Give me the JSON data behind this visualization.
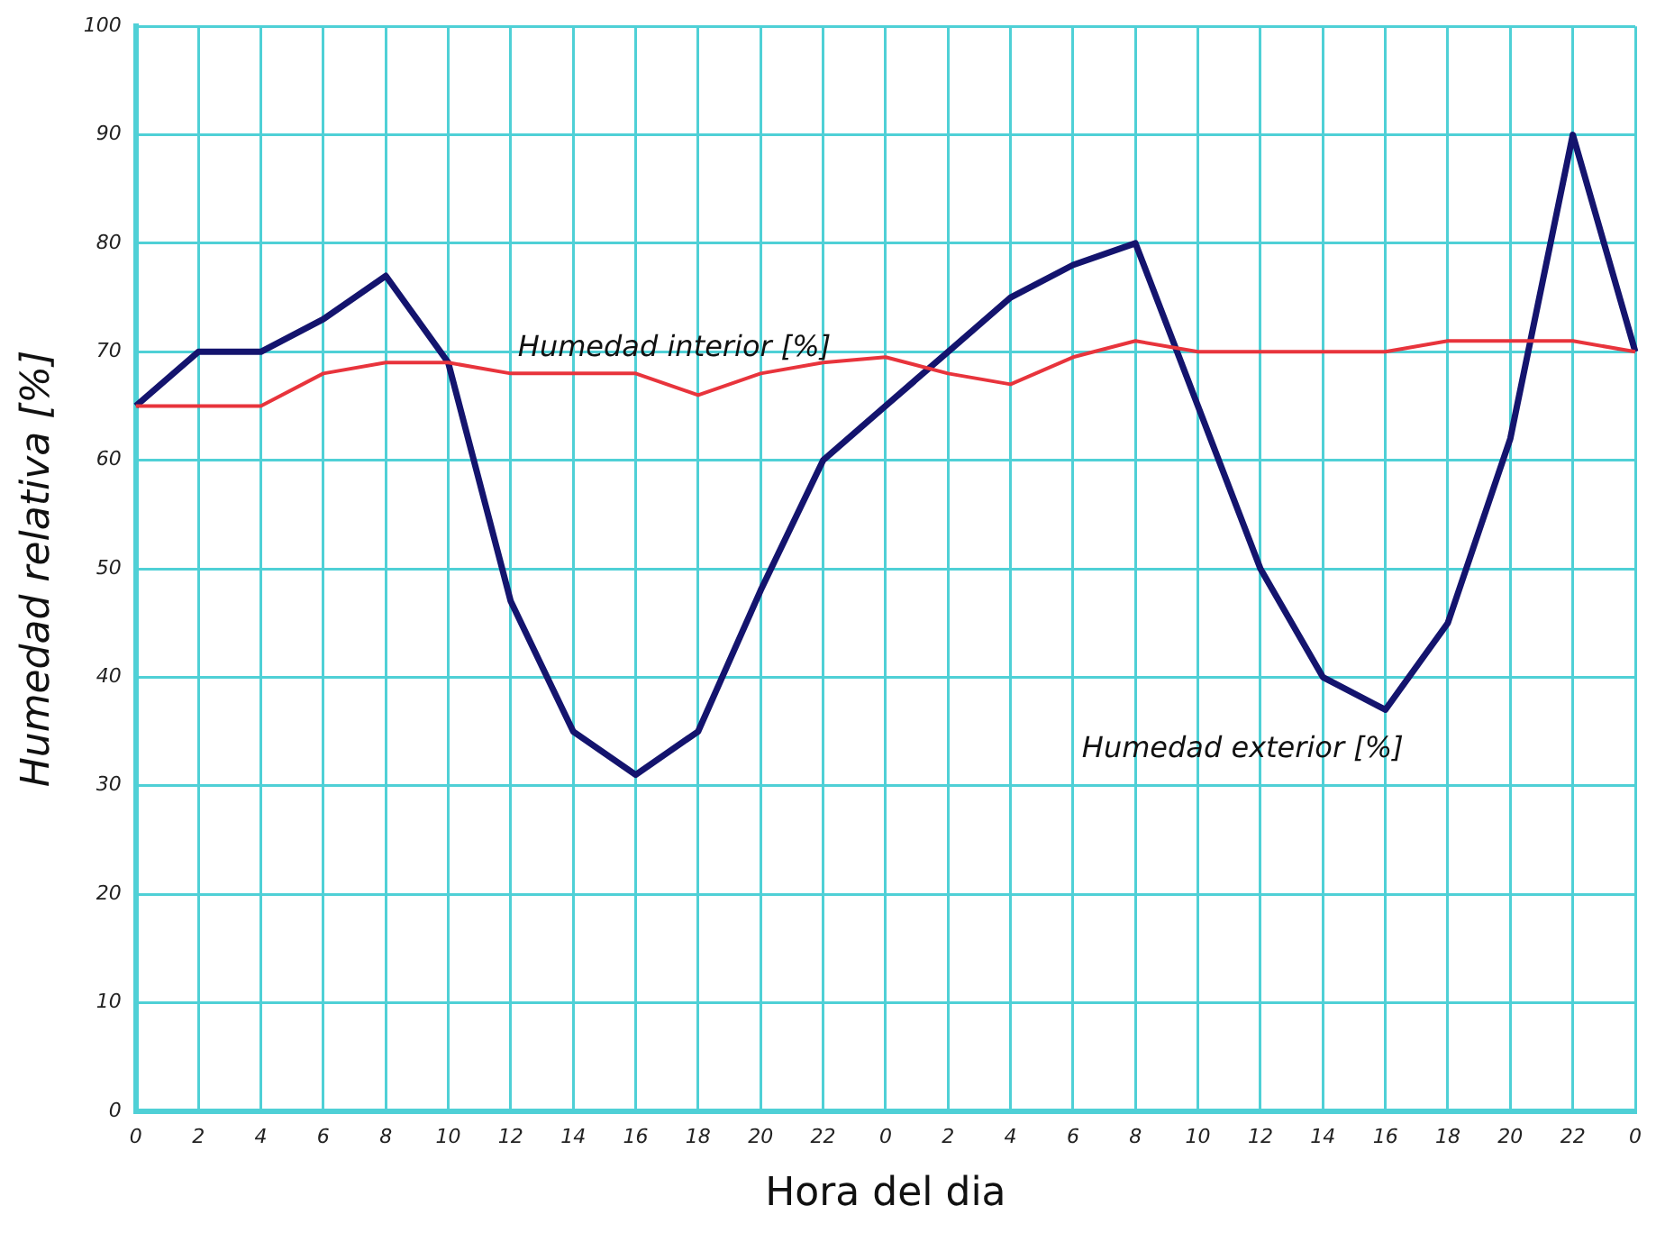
{
  "chart_data": {
    "type": "line",
    "xlabel": "Hora del dia",
    "ylabel": "Humedad relativa [%]",
    "categories": [
      "0",
      "2",
      "4",
      "6",
      "8",
      "10",
      "12",
      "14",
      "16",
      "18",
      "20",
      "22",
      "0",
      "2",
      "4",
      "6",
      "8",
      "10",
      "12",
      "14",
      "16",
      "18",
      "20",
      "22",
      "0"
    ],
    "series": [
      {
        "name": "Humedad interior [%]",
        "color": "#e8343c",
        "values": [
          65,
          65,
          65,
          68,
          69,
          69,
          68,
          68,
          68,
          66,
          68,
          69,
          69.5,
          68,
          67,
          69.5,
          71,
          70,
          70,
          70,
          70,
          71,
          71,
          71,
          70
        ]
      },
      {
        "name": "Humedad exterior [%]",
        "color": "#14146e",
        "values": [
          65,
          70,
          70,
          73,
          77,
          69,
          47,
          35,
          31,
          35,
          48,
          60,
          65,
          70,
          75,
          78,
          80,
          65,
          50,
          40,
          37,
          45,
          62,
          90,
          70
        ]
      }
    ],
    "ylim": [
      0,
      100
    ],
    "yticks": [
      0,
      10,
      20,
      30,
      40,
      50,
      60,
      70,
      80,
      90,
      100
    ],
    "grid": true,
    "legend": false,
    "marker": "none",
    "line_style": "solid"
  }
}
